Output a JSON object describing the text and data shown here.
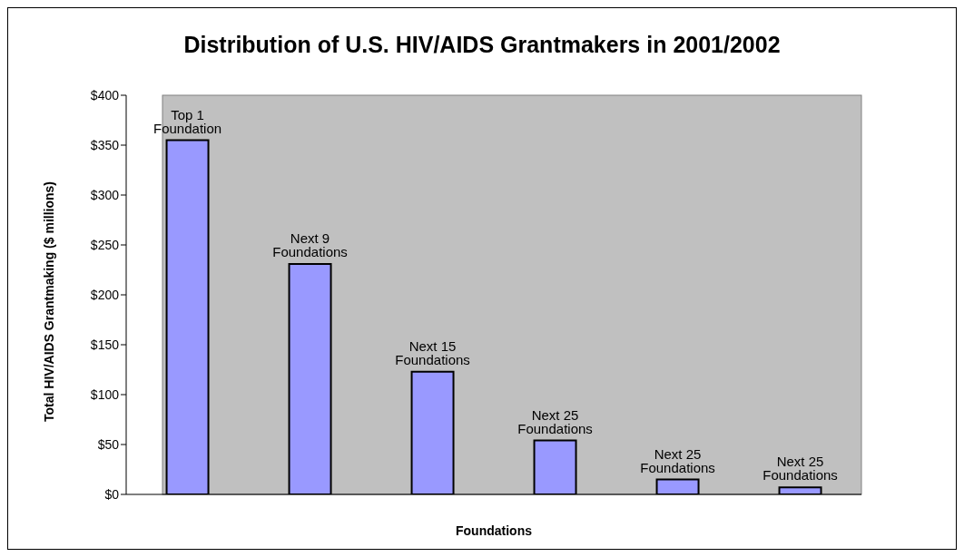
{
  "chart_data": {
    "type": "bar",
    "title": "Distribution of U.S. HIV/AIDS Grantmakers in 2001/2002",
    "xlabel": "Foundations",
    "ylabel": "Total HIV/AIDS Grantmaking ($ millions)",
    "categories": [
      "Top 1 Foundation",
      "Next 9 Foundations",
      "Next 15 Foundations",
      "Next 25 Foundations",
      "Next 25 Foundations",
      "Next 25 Foundations"
    ],
    "values": [
      355,
      231,
      123,
      54,
      15,
      7
    ],
    "color": "#9999ff",
    "ylim": [
      0,
      400
    ],
    "yticks": [
      {
        "value": 0,
        "label": "$0"
      },
      {
        "value": 50,
        "label": "$50"
      },
      {
        "value": 100,
        "label": "$100"
      },
      {
        "value": 150,
        "label": "$150"
      },
      {
        "value": 200,
        "label": "$200"
      },
      {
        "value": 250,
        "label": "$250"
      },
      {
        "value": 300,
        "label": "$300"
      },
      {
        "value": 350,
        "label": "$350"
      },
      {
        "value": 400,
        "label": "$400"
      }
    ],
    "grid": false,
    "legend": false,
    "tick_labels": "y"
  }
}
